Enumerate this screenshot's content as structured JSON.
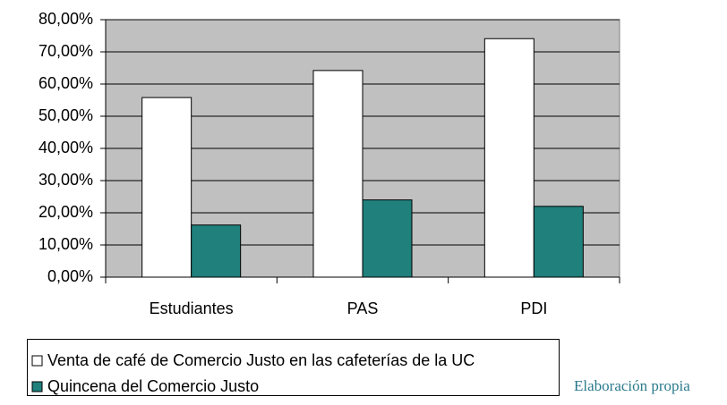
{
  "chart_data": {
    "type": "bar",
    "categories": [
      "Estudiantes",
      "PAS",
      "PDI"
    ],
    "series": [
      {
        "name": "Venta de café de Comercio Justo en las cafeterías de la UC",
        "color": "#ffffff",
        "values": [
          55.8,
          64.2,
          74.1
        ]
      },
      {
        "name": "Quincena del Comercio Justo",
        "color": "#1f807c",
        "values": [
          16.2,
          24.0,
          22.0
        ]
      }
    ],
    "ylim": [
      0,
      80
    ],
    "yticks": [
      {
        "value": 0,
        "label": "0,00%"
      },
      {
        "value": 10,
        "label": "10,00%"
      },
      {
        "value": 20,
        "label": "20,00%"
      },
      {
        "value": 30,
        "label": "30,00%"
      },
      {
        "value": 40,
        "label": "40,00%"
      },
      {
        "value": 50,
        "label": "50,00%"
      },
      {
        "value": 60,
        "label": "60,00%"
      },
      {
        "value": 70,
        "label": "70,00%"
      },
      {
        "value": 80,
        "label": "80,00%"
      }
    ],
    "grid": true,
    "plot_background": "#c0c0c0",
    "source": "Elaboración propia"
  }
}
